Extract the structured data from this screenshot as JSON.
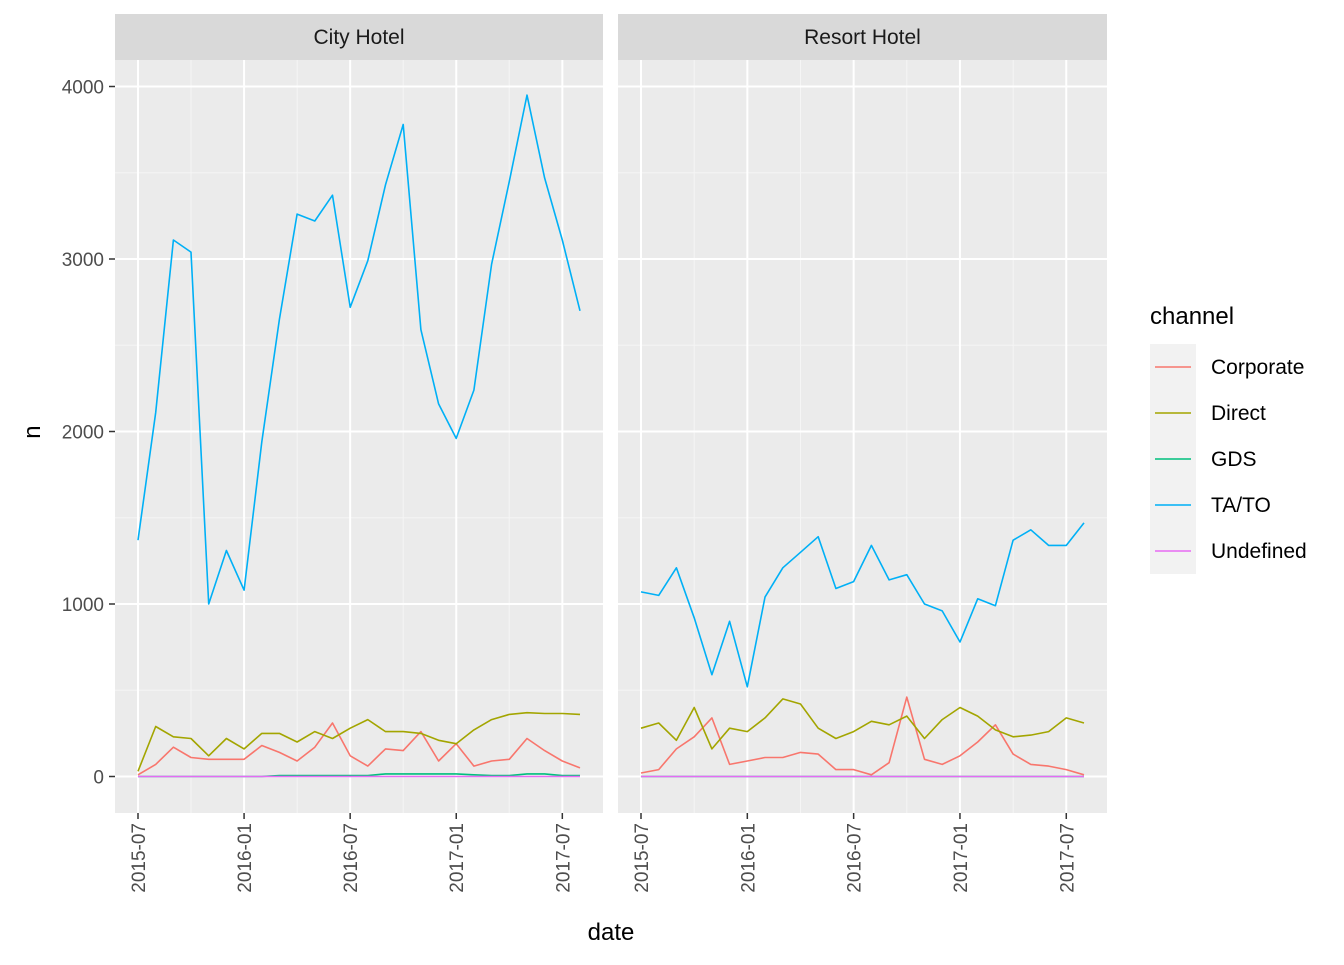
{
  "chart_data": {
    "type": "line",
    "xlabel": "date",
    "ylabel": "n",
    "x_range": [
      "2015-07",
      "2017-08"
    ],
    "ylim": [
      0,
      4000
    ],
    "y_ticks": [
      0,
      1000,
      2000,
      3000,
      4000
    ],
    "x_ticks": [
      "2015-07",
      "2016-01",
      "2016-07",
      "2017-01",
      "2017-07"
    ],
    "grid": true,
    "legend": {
      "title": "channel",
      "position": "right",
      "entries": [
        "Corporate",
        "Direct",
        "GDS",
        "TA/TO",
        "Undefined"
      ]
    },
    "colors": {
      "Corporate": "#F8766D",
      "Direct": "#A3A500",
      "GDS": "#00BF7D",
      "TA/TO": "#00B0F6",
      "Undefined": "#E76BF3"
    },
    "months": [
      "2015-07",
      "2015-08",
      "2015-09",
      "2015-10",
      "2015-11",
      "2015-12",
      "2016-01",
      "2016-02",
      "2016-03",
      "2016-04",
      "2016-05",
      "2016-06",
      "2016-07",
      "2016-08",
      "2016-09",
      "2016-10",
      "2016-11",
      "2016-12",
      "2017-01",
      "2017-02",
      "2017-03",
      "2017-04",
      "2017-05",
      "2017-06",
      "2017-07",
      "2017-08"
    ],
    "panels": [
      {
        "title": "City Hotel",
        "series": [
          {
            "name": "Corporate",
            "values": [
              10,
              70,
              170,
              110,
              100,
              100,
              100,
              180,
              140,
              90,
              170,
              310,
              120,
              60,
              160,
              150,
              260,
              90,
              190,
              60,
              90,
              100,
              220,
              150,
              90,
              50
            ]
          },
          {
            "name": "Direct",
            "values": [
              30,
              290,
              230,
              220,
              120,
              220,
              160,
              250,
              250,
              200,
              260,
              220,
              280,
              330,
              260,
              260,
              250,
              210,
              190,
              270,
              330,
              360,
              370,
              365,
              365,
              360
            ]
          },
          {
            "name": "GDS",
            "values": [
              0,
              0,
              0,
              0,
              0,
              0,
              0,
              0,
              5,
              5,
              5,
              5,
              5,
              5,
              15,
              15,
              15,
              15,
              15,
              10,
              5,
              5,
              15,
              15,
              5,
              5
            ]
          },
          {
            "name": "TA/TO",
            "values": [
              1370,
              2110,
              3110,
              3040,
              1000,
              1310,
              1080,
              1940,
              2650,
              3260,
              3220,
              3370,
              2720,
              2990,
              3430,
              3780,
              2590,
              2160,
              1960,
              2240,
              2970,
              3450,
              3950,
              3470,
              3110,
              2700
            ]
          },
          {
            "name": "Undefined",
            "values": [
              0,
              0,
              0,
              0,
              0,
              0,
              0,
              0,
              0,
              0,
              0,
              0,
              0,
              0,
              0,
              0,
              0,
              0,
              0,
              0,
              0,
              0,
              0,
              0,
              0,
              0
            ]
          }
        ]
      },
      {
        "title": "Resort Hotel",
        "series": [
          {
            "name": "Corporate",
            "values": [
              20,
              40,
              160,
              230,
              340,
              70,
              90,
              110,
              110,
              140,
              130,
              40,
              40,
              10,
              80,
              460,
              100,
              70,
              120,
              200,
              300,
              130,
              70,
              60,
              40,
              10
            ]
          },
          {
            "name": "Direct",
            "values": [
              280,
              310,
              210,
              400,
              160,
              280,
              260,
              340,
              450,
              420,
              280,
              220,
              260,
              320,
              300,
              350,
              220,
              330,
              400,
              350,
              270,
              230,
              240,
              260,
              340,
              310
            ]
          },
          {
            "name": "GDS",
            "values": [
              0,
              0,
              0,
              0,
              0,
              0,
              0,
              0,
              0,
              0,
              0,
              0,
              0,
              0,
              0,
              0,
              0,
              0,
              0,
              0,
              0,
              0,
              0,
              0,
              0,
              0
            ]
          },
          {
            "name": "TA/TO",
            "values": [
              1070,
              1050,
              1210,
              920,
              590,
              900,
              520,
              1040,
              1210,
              1300,
              1390,
              1090,
              1130,
              1340,
              1140,
              1170,
              1000,
              960,
              780,
              1030,
              990,
              1370,
              1430,
              1340,
              1340,
              1470
            ]
          },
          {
            "name": "Undefined",
            "values": [
              0,
              0,
              0,
              0,
              0,
              0,
              0,
              0,
              0,
              0,
              0,
              0,
              0,
              0,
              0,
              0,
              0,
              0,
              0,
              0,
              0,
              0,
              0,
              0,
              0,
              0
            ]
          }
        ]
      }
    ]
  }
}
